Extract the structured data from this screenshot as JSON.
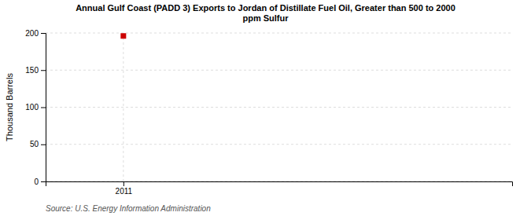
{
  "chart_data": {
    "type": "scatter",
    "title": "Annual Gulf Coast (PADD 3) Exports to Jordan of Distillate Fuel Oil, Greater than 500 to 2000\nppm Sulfur",
    "y_label": "Thousand Barrels",
    "source": "Source: U.S. Energy Information Administration",
    "x": [
      2011
    ],
    "values": [
      196
    ],
    "color": "#cc0000",
    "marker": "square",
    "xlim": [
      2010.5,
      2013.5
    ],
    "xticks": [
      2011
    ],
    "ylim": [
      0,
      200
    ],
    "yticks": [
      0,
      50,
      100,
      150,
      200
    ],
    "grid": true
  }
}
